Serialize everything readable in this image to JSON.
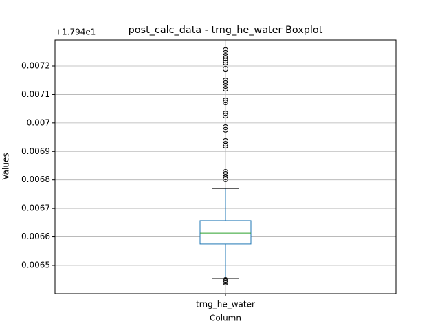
{
  "chart_data": {
    "type": "box",
    "title": "post_calc_data - trng_he_water Boxplot",
    "xlabel": "Column",
    "ylabel": "Values",
    "offset_text": "+1.794e1",
    "categories": [
      "trng_he_water"
    ],
    "boxes": [
      {
        "q1": 0.006575,
        "median": 0.006613,
        "q3": 0.006657,
        "whislo": 0.006454,
        "whishi": 0.00677,
        "fliers": [
          0.007256,
          0.007246,
          0.007236,
          0.007227,
          0.007219,
          0.007212,
          0.00719,
          0.007149,
          0.00714,
          0.00713,
          0.00712,
          0.007079,
          0.007072,
          0.007033,
          0.007026,
          0.006985,
          0.006976,
          0.006937,
          0.006927,
          0.00692,
          0.006828,
          0.006821,
          0.006809,
          0.006802,
          0.006449,
          0.006444,
          0.00644
        ]
      }
    ],
    "box_color": "#1f77b4",
    "median_color": "#2ca02c",
    "ylim": [
      0.006401,
      0.0072917
    ],
    "yticks": [
      0.0065,
      0.0066,
      0.0067,
      0.0068,
      0.0069,
      0.007,
      0.0071,
      0.0072
    ],
    "grid": true
  }
}
